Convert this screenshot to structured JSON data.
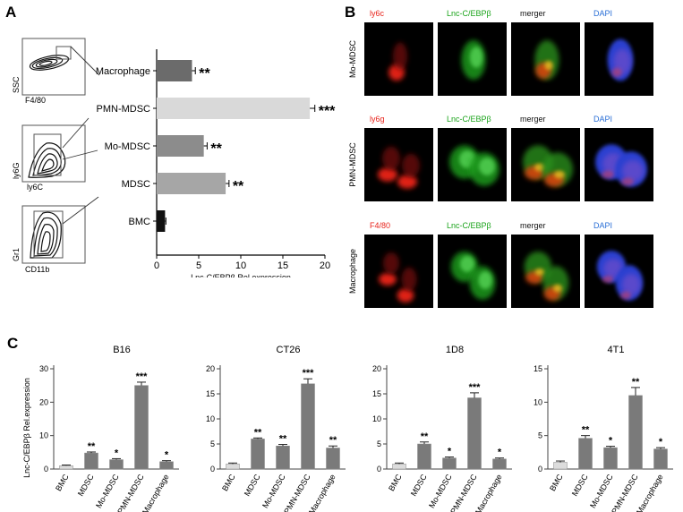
{
  "panel_a": {
    "letter": "A",
    "flow": [
      {
        "xlabel": "F4/80",
        "ylabel": "SSC"
      },
      {
        "xlabel": "ly6C",
        "ylabel": "ly6G"
      },
      {
        "xlabel": "CD11b",
        "ylabel": "Gr1"
      }
    ]
  },
  "panel_b": {
    "letter": "B",
    "rows": [
      {
        "label": "Mo-MDSC",
        "channels": [
          "ly6c",
          "Lnc-C/EBPβ",
          "merger",
          "DAPI"
        ]
      },
      {
        "label": "PMN-MDSC",
        "channels": [
          "ly6g",
          "Lnc-C/EBPβ",
          "merger",
          "DAPI"
        ]
      },
      {
        "label": "Macrophage",
        "channels": [
          "F4/80",
          "Lnc-C/EBPβ",
          "merger",
          "DAPI"
        ]
      }
    ],
    "colors": {
      "red": "#e8231b",
      "green": "#1aa31a",
      "black": "#111111",
      "blue": "#2a6fd6"
    }
  },
  "panel_c": {
    "letter": "C"
  },
  "chart_data": [
    {
      "type": "bar",
      "orientation": "horizontal",
      "categories": [
        "Macrophage",
        "PMN-MDSC",
        "Mo-MDSC",
        "MDSC",
        "BMC"
      ],
      "values": [
        4.2,
        18.2,
        5.6,
        8.2,
        1.0
      ],
      "errors": [
        0.4,
        0.6,
        0.4,
        0.4,
        0.1
      ],
      "significance": [
        "**",
        "***",
        "**",
        "**",
        ""
      ],
      "colors": [
        "#6b6b6b",
        "#d9d9d9",
        "#8c8c8c",
        "#a6a6a6",
        "#111111"
      ],
      "xlabel": "Lnc-C/EBPβ Rel.expression",
      "xlim": [
        0,
        20
      ],
      "xticks": [
        0,
        5,
        10,
        15,
        20
      ]
    },
    {
      "type": "bar",
      "title": "B16",
      "categories": [
        "BMC",
        "MDSC",
        "Mo-MDSC",
        "PMN-MDSC",
        "Macrophage"
      ],
      "values": [
        1.0,
        4.8,
        2.8,
        25.0,
        2.2
      ],
      "errors": [
        0.2,
        0.3,
        0.3,
        1.0,
        0.3
      ],
      "significance": [
        "",
        "**",
        "*",
        "***",
        "*"
      ],
      "ylabel": "Lnc-C/EBPβ Rel.expression",
      "ylim": [
        0,
        30
      ],
      "yticks": [
        0,
        10,
        20,
        30
      ]
    },
    {
      "type": "bar",
      "title": "CT26",
      "categories": [
        "BMC",
        "MDSC",
        "Mo-MDSC",
        "PMN-MDSC",
        "Macrophage"
      ],
      "values": [
        1.0,
        6.0,
        4.6,
        17.0,
        4.2
      ],
      "errors": [
        0.2,
        0.2,
        0.3,
        1.0,
        0.4
      ],
      "significance": [
        "",
        "**",
        "**",
        "***",
        "**"
      ],
      "ylim": [
        0,
        20
      ],
      "yticks": [
        0,
        5,
        10,
        15,
        20
      ]
    },
    {
      "type": "bar",
      "title": "1D8",
      "categories": [
        "BMC",
        "MDSC",
        "Mo-MDSC",
        "PMN-MDSC",
        "Macrophage"
      ],
      "values": [
        1.0,
        5.0,
        2.2,
        14.2,
        2.0
      ],
      "errors": [
        0.2,
        0.4,
        0.2,
        1.0,
        0.2
      ],
      "significance": [
        "",
        "**",
        "*",
        "***",
        "*"
      ],
      "ylim": [
        0,
        20
      ],
      "yticks": [
        0,
        5,
        10,
        15,
        20
      ]
    },
    {
      "type": "bar",
      "title": "4T1",
      "categories": [
        "BMC",
        "MDSC",
        "Mo-MDSC",
        "PMN-MDSC",
        "Macrophage"
      ],
      "values": [
        1.0,
        4.6,
        3.2,
        11.0,
        3.0
      ],
      "errors": [
        0.2,
        0.4,
        0.2,
        1.2,
        0.2
      ],
      "significance": [
        "",
        "**",
        "*",
        "**",
        "*"
      ],
      "ylim": [
        0,
        15
      ],
      "yticks": [
        0,
        5,
        10,
        15
      ]
    }
  ]
}
